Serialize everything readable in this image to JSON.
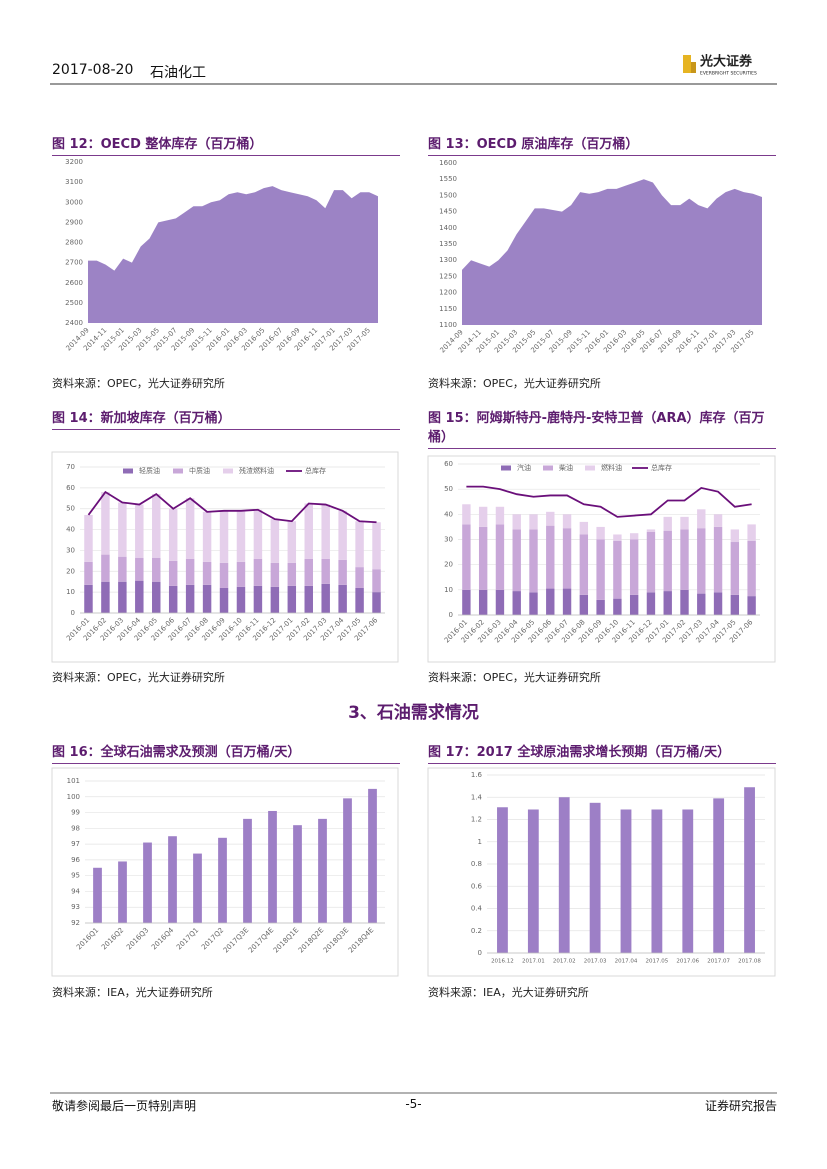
{
  "header": {
    "date": "2017-08-20",
    "industry": "石油化工",
    "logo": "光大证券",
    "logo_en": "EVERBRIGHT SECURITIES"
  },
  "section_title": "3、石油需求情况",
  "footer": {
    "left": "敬请参阅最后一页特别声明",
    "page": "-5-",
    "right": "证券研究报告"
  },
  "chart_data": [
    {
      "type": "area",
      "title": "图 12：OECD 整体库存（百万桶）",
      "source": "资料来源：OPEC，光大证券研究所",
      "color": "#9c83c5",
      "categories": [
        "2014-09",
        null,
        "2014-11",
        null,
        "2015-01",
        null,
        "2015-03",
        null,
        "2015-05",
        null,
        "2015-07",
        null,
        "2015-09",
        null,
        "2015-11",
        null,
        "2016-01",
        null,
        "2016-03",
        null,
        "2016-05",
        null,
        "2016-07",
        null,
        "2016-09",
        null,
        "2016-11",
        null,
        "2017-01",
        null,
        "2017-03",
        null,
        "2017-05",
        null
      ],
      "values": [
        2710,
        2710,
        2690,
        2660,
        2720,
        2700,
        2780,
        2820,
        2900,
        2910,
        2920,
        2950,
        2980,
        2980,
        3000,
        3010,
        3040,
        3050,
        3040,
        3050,
        3070,
        3080,
        3060,
        3050,
        3040,
        3030,
        3010,
        2970,
        3060,
        3060,
        3020,
        3050,
        3050,
        3030
      ],
      "ylim": [
        2400,
        3200
      ],
      "yticks": [
        2400,
        2500,
        2600,
        2700,
        2800,
        2900,
        3000,
        3100,
        3200
      ],
      "grid": false
    },
    {
      "type": "area",
      "title": "图 13：OECD 原油库存（百万桶）",
      "source": "资料来源：OPEC，光大证券研究所",
      "color": "#9c83c5",
      "categories": [
        "2014-09",
        null,
        "2014-11",
        null,
        "2015-01",
        null,
        "2015-03",
        null,
        "2015-05",
        null,
        "2015-07",
        null,
        "2015-09",
        null,
        "2015-11",
        null,
        "2016-01",
        null,
        "2016-03",
        null,
        "2016-05",
        null,
        "2016-07",
        null,
        "2016-09",
        null,
        "2016-11",
        null,
        "2017-01",
        null,
        "2017-03",
        null,
        "2017-05",
        null
      ],
      "values": [
        1270,
        1300,
        1290,
        1280,
        1300,
        1330,
        1380,
        1420,
        1460,
        1460,
        1455,
        1450,
        1470,
        1510,
        1505,
        1510,
        1520,
        1520,
        1530,
        1540,
        1550,
        1540,
        1500,
        1470,
        1470,
        1490,
        1470,
        1460,
        1490,
        1510,
        1520,
        1510,
        1505,
        1495
      ],
      "ylim": [
        1100,
        1600
      ],
      "yticks": [
        1100,
        1150,
        1200,
        1250,
        1300,
        1350,
        1400,
        1450,
        1500,
        1550,
        1600
      ],
      "grid": false
    },
    {
      "type": "bar",
      "stacked": true,
      "title": "图 14：新加坡库存（百万桶）",
      "source": "资料来源：OPEC，光大证券研究所",
      "legend": "top",
      "categories": [
        "2016-01",
        "2016-02",
        "2016-03",
        "2016-04",
        "2016-05",
        "2016-06",
        "2016-07",
        "2016-08",
        "2016-09",
        "2016-10",
        "2016-11",
        "2016-12",
        "2017-01",
        "2017-02",
        "2017-03",
        "2017-04",
        "2017-05",
        "2017-06"
      ],
      "series": [
        {
          "name": "轻质油",
          "color": "#8f6cb6",
          "values": [
            13.5,
            15,
            15,
            15.5,
            15,
            13,
            13.5,
            13.5,
            12,
            12.5,
            13,
            12.5,
            13,
            13,
            14,
            13.5,
            12,
            10
          ]
        },
        {
          "name": "中质油",
          "color": "#c8a7d8",
          "values": [
            11,
            13,
            12,
            11,
            11.5,
            12,
            12.5,
            11,
            12,
            12,
            13,
            11.5,
            11,
            13,
            12,
            12,
            10,
            11
          ]
        },
        {
          "name": "残渣燃料油",
          "color": "#e5cfeb",
          "values": [
            22.5,
            30,
            26,
            25.5,
            30.5,
            25,
            29,
            24,
            25,
            24.5,
            23.5,
            21,
            20,
            26.5,
            26,
            23.5,
            22,
            22.5
          ]
        },
        {
          "name": "总库存",
          "color": "#6a0f7a",
          "type": "line",
          "values": [
            47,
            58,
            53,
            52,
            57,
            50,
            55,
            48.5,
            49,
            49,
            49.5,
            45,
            44,
            52.5,
            52,
            49,
            44,
            43.5
          ]
        }
      ],
      "ylim": [
        0,
        70
      ],
      "yticks": [
        0,
        10,
        20,
        30,
        40,
        50,
        60,
        70
      ],
      "grid": true
    },
    {
      "type": "bar",
      "stacked": true,
      "title": "图 15：阿姆斯特丹-鹿特丹-安特卫普（ARA）库存（百万桶）",
      "source": "资料来源：OPEC，光大证券研究所",
      "legend": "top",
      "categories": [
        "2016-01",
        "2016-02",
        "2016-03",
        "2016-04",
        "2016-05",
        "2016-06",
        "2016-07",
        "2016-08",
        "2016-09",
        "2016-10",
        "2016-11",
        "2016-12",
        "2017-01",
        "2017-02",
        "2017-03",
        "2017-04",
        "2017-05",
        "2017-06"
      ],
      "series": [
        {
          "name": "汽油",
          "color": "#8f6cb6",
          "values": [
            10,
            10,
            10,
            9.5,
            9,
            10.5,
            10.5,
            8,
            6,
            6.5,
            8,
            9,
            9.5,
            10,
            8.5,
            9,
            8,
            7.5
          ]
        },
        {
          "name": "柴油",
          "color": "#c8a7d8",
          "values": [
            26,
            25,
            26,
            24.5,
            25,
            25,
            24,
            24,
            24,
            23,
            22,
            24,
            24,
            24,
            26,
            26,
            21,
            22
          ]
        },
        {
          "name": "燃料油",
          "color": "#e5cfeb",
          "values": [
            8,
            8,
            7,
            6,
            6,
            5.5,
            5.5,
            5,
            5,
            2.5,
            2.5,
            1,
            5.5,
            5,
            7.5,
            5,
            5,
            6.5
          ]
        },
        {
          "name": "总库存",
          "color": "#6a0f7a",
          "type": "line",
          "values": [
            51,
            51,
            50,
            48,
            47,
            47.5,
            47.5,
            44,
            43,
            39,
            39.5,
            40,
            45.5,
            45.5,
            50.5,
            49,
            43,
            44
          ]
        }
      ],
      "ylim": [
        0,
        60
      ],
      "yticks": [
        0,
        10,
        20,
        30,
        40,
        50,
        60
      ],
      "grid": true
    },
    {
      "type": "bar",
      "title": "图 16：全球石油需求及预测（百万桶/天）",
      "source": "资料来源：IEA，光大证券研究所",
      "color": "#9d7fc6",
      "categories": [
        "2016Q1",
        "2016Q2",
        "2016Q3",
        "2016Q4",
        "2017Q1",
        "2017Q2",
        "2017Q3E",
        "2017Q4E",
        "2018Q1E",
        "2018Q2E",
        "2018Q3E",
        "2018Q4E"
      ],
      "values": [
        95.5,
        95.9,
        97.1,
        97.5,
        96.4,
        97.4,
        98.6,
        99.1,
        98.2,
        98.6,
        99.9,
        100.5
      ],
      "ylim": [
        92,
        101
      ],
      "yticks": [
        92,
        93,
        94,
        95,
        96,
        97,
        98,
        99,
        100,
        101
      ],
      "grid": true
    },
    {
      "type": "bar",
      "title": "图 17：2017 全球原油需求增长预期（百万桶/天）",
      "source": "资料来源：IEA，光大证券研究所",
      "color": "#9d7fc6",
      "categories": [
        "2016.12",
        "2017.01",
        "2017.02",
        "2017.03",
        "2017.04",
        "2017.05",
        "2017.06",
        "2017.07",
        "2017.08"
      ],
      "values": [
        1.31,
        1.29,
        1.4,
        1.35,
        1.29,
        1.29,
        1.29,
        1.39,
        1.49
      ],
      "ylim": [
        0,
        1.6
      ],
      "yticks": [
        0,
        0.2,
        0.4,
        0.6,
        0.8,
        1,
        1.2,
        1.4,
        1.6
      ],
      "grid": true
    }
  ]
}
